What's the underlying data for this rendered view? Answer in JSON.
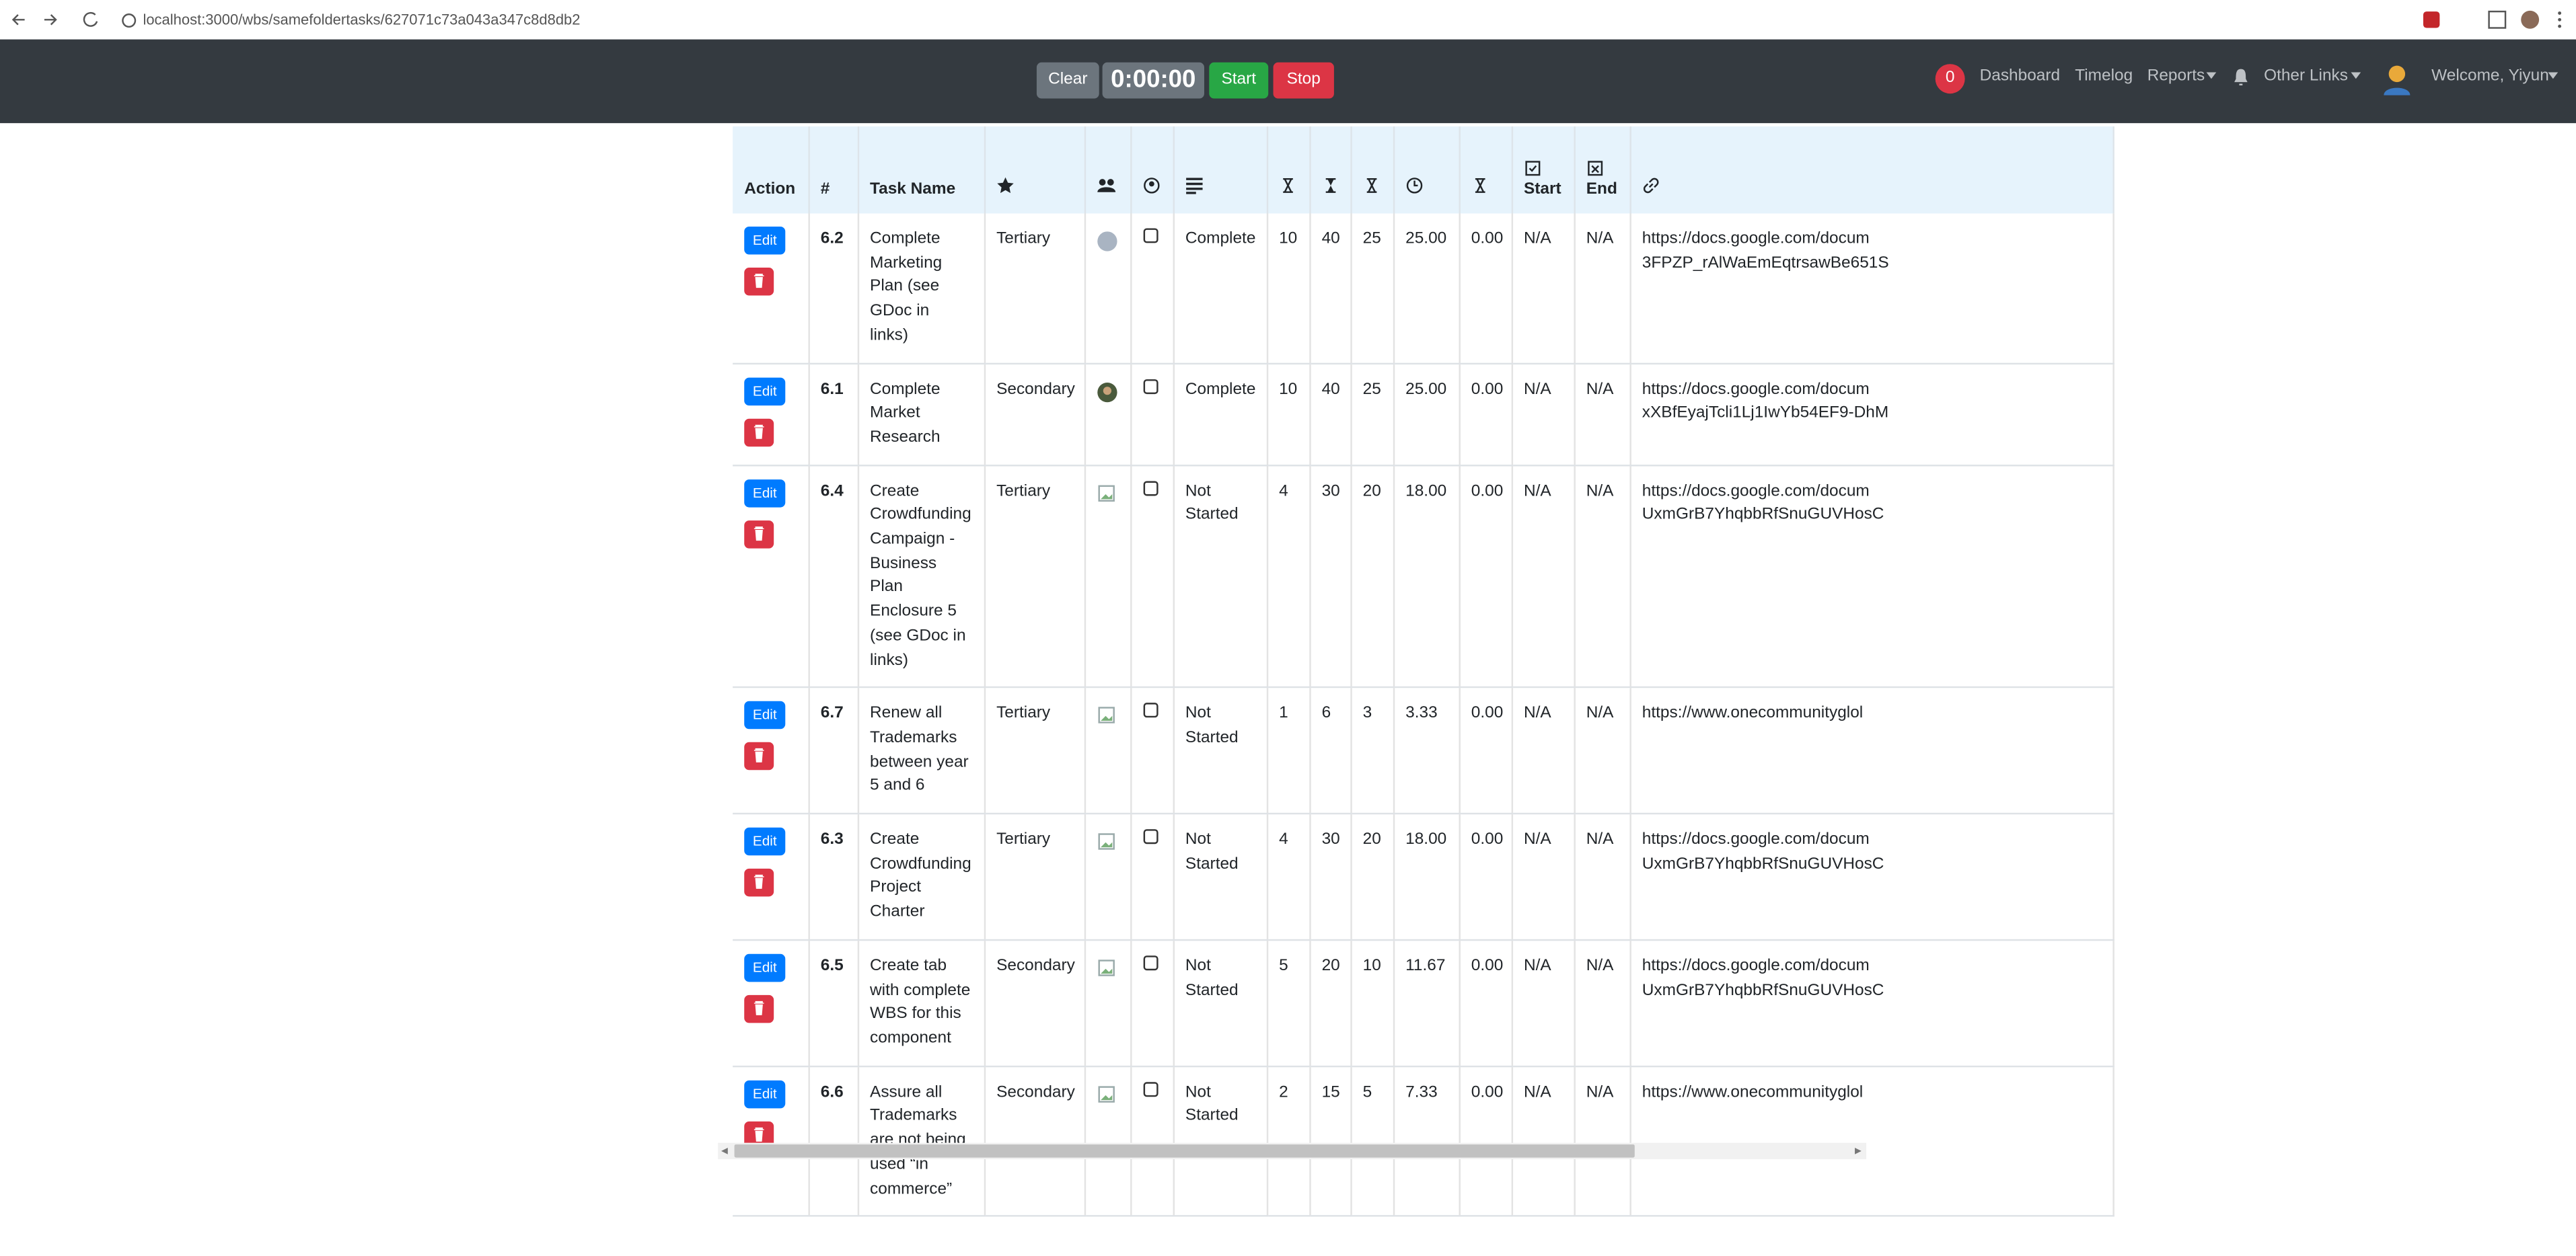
{
  "browser": {
    "url": "localhost:3000/wbs/samefoldertasks/627071c73a043a347c8d8db2"
  },
  "navbar": {
    "timer_clear": "Clear",
    "timer": "0:00:00",
    "timer_start": "Start",
    "timer_stop": "Stop",
    "badge": "0",
    "links": [
      "Dashboard",
      "Timelog",
      "Reports",
      "Other Links"
    ],
    "welcome": "Welcome, Yiyun"
  },
  "table": {
    "headers": {
      "action": "Action",
      "number": "#",
      "task_name": "Task Name",
      "start": "Start",
      "end": "End"
    },
    "edit_label": "Edit",
    "rows": [
      {
        "number": "6.2",
        "name": "Complete Marketing Plan (see GDoc in links)",
        "priority": "Tertiary",
        "status": "Complete",
        "hours": [
          "10",
          "40",
          "25",
          "25.00"
        ],
        "logged": "0.00",
        "start": "N/A",
        "end": "N/A",
        "link": [
          "https://docs.google.com/docum",
          "3FPZP_rAlWaEmEqtrsawBe651S"
        ]
      },
      {
        "number": "6.1",
        "name": "Complete Market Research",
        "priority": "Secondary",
        "status": "Complete",
        "hours": [
          "10",
          "40",
          "25",
          "25.00"
        ],
        "logged": "0.00",
        "start": "N/A",
        "end": "N/A",
        "link": [
          "https://docs.google.com/docum",
          "xXBfEyajTcli1Lj1IwYb54EF9-DhM"
        ]
      },
      {
        "number": "6.4",
        "name": "Create Crowdfunding Campaign - Business Plan Enclosure 5 (see GDoc in links)",
        "priority": "Tertiary",
        "status": "Not Started",
        "hours": [
          "4",
          "30",
          "20",
          "18.00"
        ],
        "logged": "0.00",
        "start": "N/A",
        "end": "N/A",
        "link": [
          "https://docs.google.com/docum",
          "UxmGrB7YhqbbRfSnuGUVHosC"
        ]
      },
      {
        "number": "6.7",
        "name": "Renew all Trademarks between year 5 and 6",
        "priority": "Tertiary",
        "status": "Not Started",
        "hours": [
          "1",
          "6",
          "3",
          "3.33"
        ],
        "logged": "0.00",
        "start": "N/A",
        "end": "N/A",
        "link": [
          "https://www.onecommunityglol"
        ]
      },
      {
        "number": "6.3",
        "name": "Create Crowdfunding Project Charter",
        "priority": "Tertiary",
        "status": "Not Started",
        "hours": [
          "4",
          "30",
          "20",
          "18.00"
        ],
        "logged": "0.00",
        "start": "N/A",
        "end": "N/A",
        "link": [
          "https://docs.google.com/docum",
          "UxmGrB7YhqbbRfSnuGUVHosC"
        ]
      },
      {
        "number": "6.5",
        "name": "Create tab with complete WBS for this component",
        "priority": "Secondary",
        "status": "Not Started",
        "hours": [
          "5",
          "20",
          "10",
          "11.67"
        ],
        "logged": "0.00",
        "start": "N/A",
        "end": "N/A",
        "link": [
          "https://docs.google.com/docum",
          "UxmGrB7YhqbbRfSnuGUVHosC"
        ]
      },
      {
        "number": "6.6",
        "name": "Assure all Trademarks are not being used “in commerce”",
        "priority": "Secondary",
        "status": "Not Started",
        "hours": [
          "2",
          "15",
          "5",
          "7.33"
        ],
        "logged": "0.00",
        "start": "N/A",
        "end": "N/A",
        "link": [
          "https://www.onecommunityglol"
        ]
      }
    ]
  }
}
